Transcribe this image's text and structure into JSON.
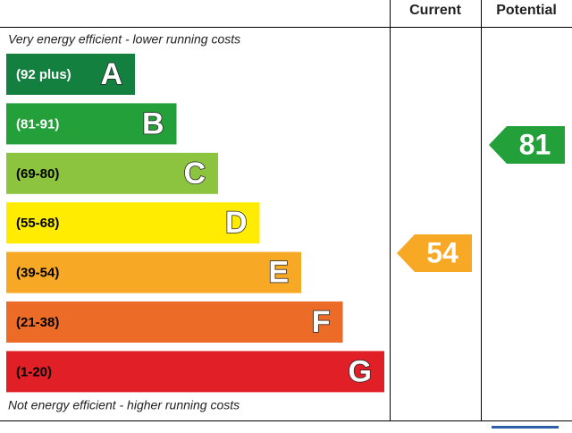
{
  "header": {
    "current": "Current",
    "potential": "Potential"
  },
  "top_note": "Very energy efficient - lower running costs",
  "bottom_note": "Not energy efficient - higher running costs",
  "bands": [
    {
      "range": "(92 plus)",
      "letter": "A",
      "color": "#13803f",
      "text_color": "#ffffff"
    },
    {
      "range": "(81-91)",
      "letter": "B",
      "color": "#23a03a",
      "text_color": "#ffffff"
    },
    {
      "range": "(69-80)",
      "letter": "C",
      "color": "#8cc43f",
      "text_color": "#000000"
    },
    {
      "range": "(55-68)",
      "letter": "D",
      "color": "#ffec00",
      "text_color": "#000000"
    },
    {
      "range": "(39-54)",
      "letter": "E",
      "color": "#f7a824",
      "text_color": "#000000"
    },
    {
      "range": "(21-38)",
      "letter": "F",
      "color": "#ec6b26",
      "text_color": "#000000"
    },
    {
      "range": "(1-20)",
      "letter": "G",
      "color": "#e01f26",
      "text_color": "#000000"
    }
  ],
  "current": {
    "value": "54",
    "color": "#f7a824"
  },
  "potential": {
    "value": "81",
    "color": "#23a03a"
  }
}
